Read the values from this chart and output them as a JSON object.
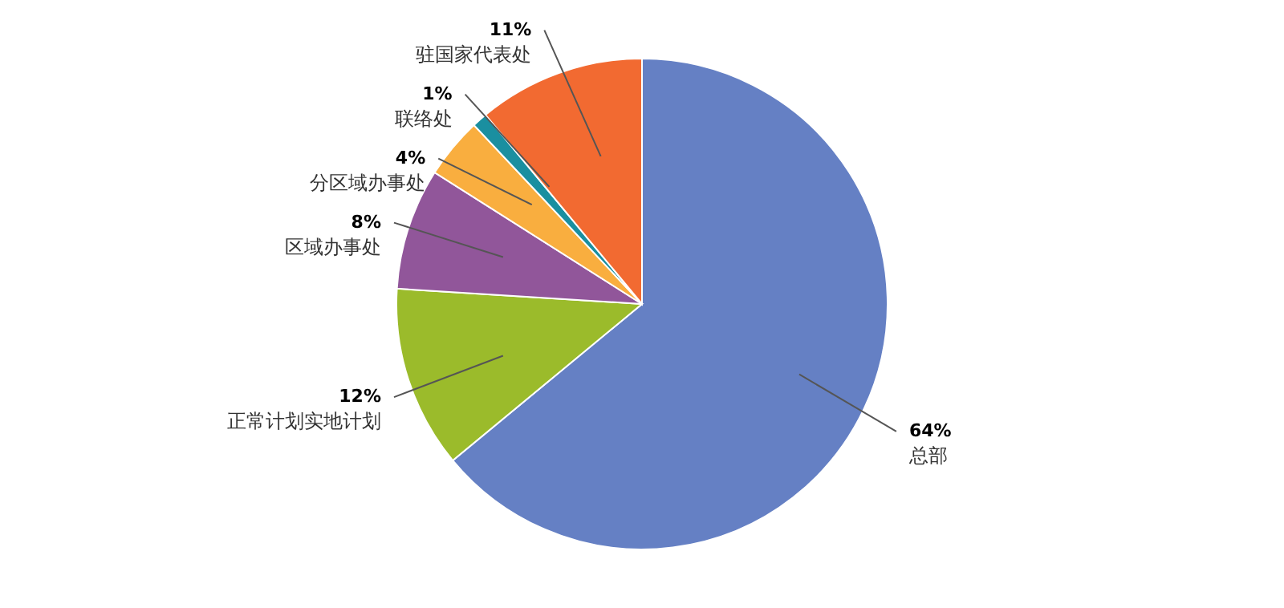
{
  "chart_data": {
    "type": "pie",
    "categories": [
      "总部",
      "正常计划实地计划",
      "区域办事处",
      "分区域办事处",
      "联络处",
      "驻国家代表处"
    ],
    "values": [
      64,
      12,
      8,
      4,
      1,
      11
    ],
    "colors": [
      "#6580c4",
      "#9bbb2b",
      "#91569a",
      "#f9ae3f",
      "#1a8fa0",
      "#f26a31"
    ],
    "value_labels": [
      "64%",
      "12%",
      "8%",
      "4%",
      "1%",
      "11%"
    ]
  }
}
